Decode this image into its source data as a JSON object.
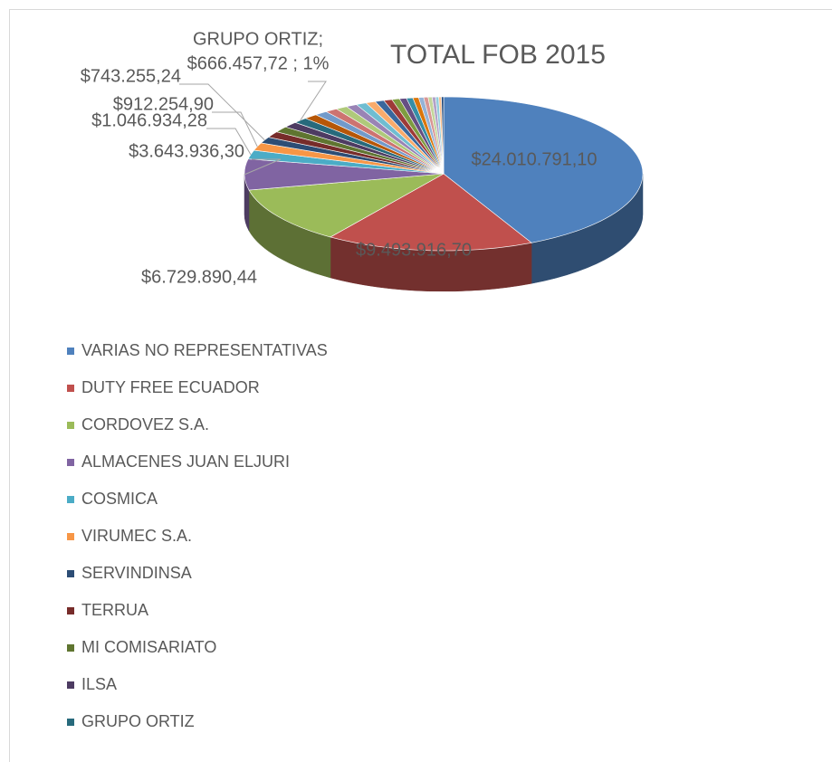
{
  "chart_data": {
    "type": "pie3d",
    "title": "TOTAL FOB 2015",
    "categories": [
      "VARIAS NO REPRESENTATIVAS",
      "DUTY FREE ECUADOR",
      "CORDOVEZ S.A.",
      "ALMACENES JUAN ELJURI",
      "COSMICA",
      "VIRUMEC S.A.",
      "SERVINDINSA",
      "TERRUA",
      "MI COMISARIATO",
      "ILSA",
      "GRUPO ORTIZ",
      null,
      null,
      null,
      null,
      null,
      null,
      null,
      null,
      null,
      null,
      null,
      null,
      null,
      null,
      null,
      null,
      null,
      null,
      null,
      null
    ],
    "values": [
      24010791.1,
      9493916.7,
      6729890.44,
      3643936.3,
      1046934.28,
      912254.9,
      743255.24,
      720000,
      700000,
      680000,
      666457.72,
      620000,
      590000,
      560000,
      530000,
      500000,
      470000,
      440000,
      410000,
      380000,
      350000,
      320000,
      290000,
      260000,
      230000,
      200000,
      180000,
      160000,
      140000,
      120000,
      100000
    ],
    "value_labels": [
      "$24.010.791,10",
      "$9.493.916,70",
      "$6.729.890,44",
      "$3.643.936,30",
      "$1.046.934,28",
      "$912.254,90",
      "$743.255,24",
      null,
      null,
      null,
      "GRUPO ORTIZ;\n$666.457,72 ; 1%",
      null,
      null,
      null,
      null,
      null,
      null,
      null,
      null,
      null,
      null,
      null,
      null,
      null,
      null,
      null,
      null,
      null,
      null,
      null,
      null
    ],
    "colors": [
      "#4f81bd",
      "#c0504d",
      "#9bbb59",
      "#8064a2",
      "#4bacc6",
      "#f79646",
      "#2c4d75",
      "#772c2a",
      "#5f7530",
      "#4d3b62",
      "#276a7c",
      "#b65708",
      "#729aca",
      "#cd7371",
      "#afc97a",
      "#9983b5",
      "#6fbdd1",
      "#f9ab6b",
      "#3a679c",
      "#9e3a38",
      "#7e9c40",
      "#664f83",
      "#358ea6",
      "#db760b",
      "#95b3d7",
      "#d99694",
      "#c3d69b",
      "#b2a1c7",
      "#92cddc",
      "#fac08f",
      "#1f497d"
    ],
    "legend": "bottom-left"
  }
}
